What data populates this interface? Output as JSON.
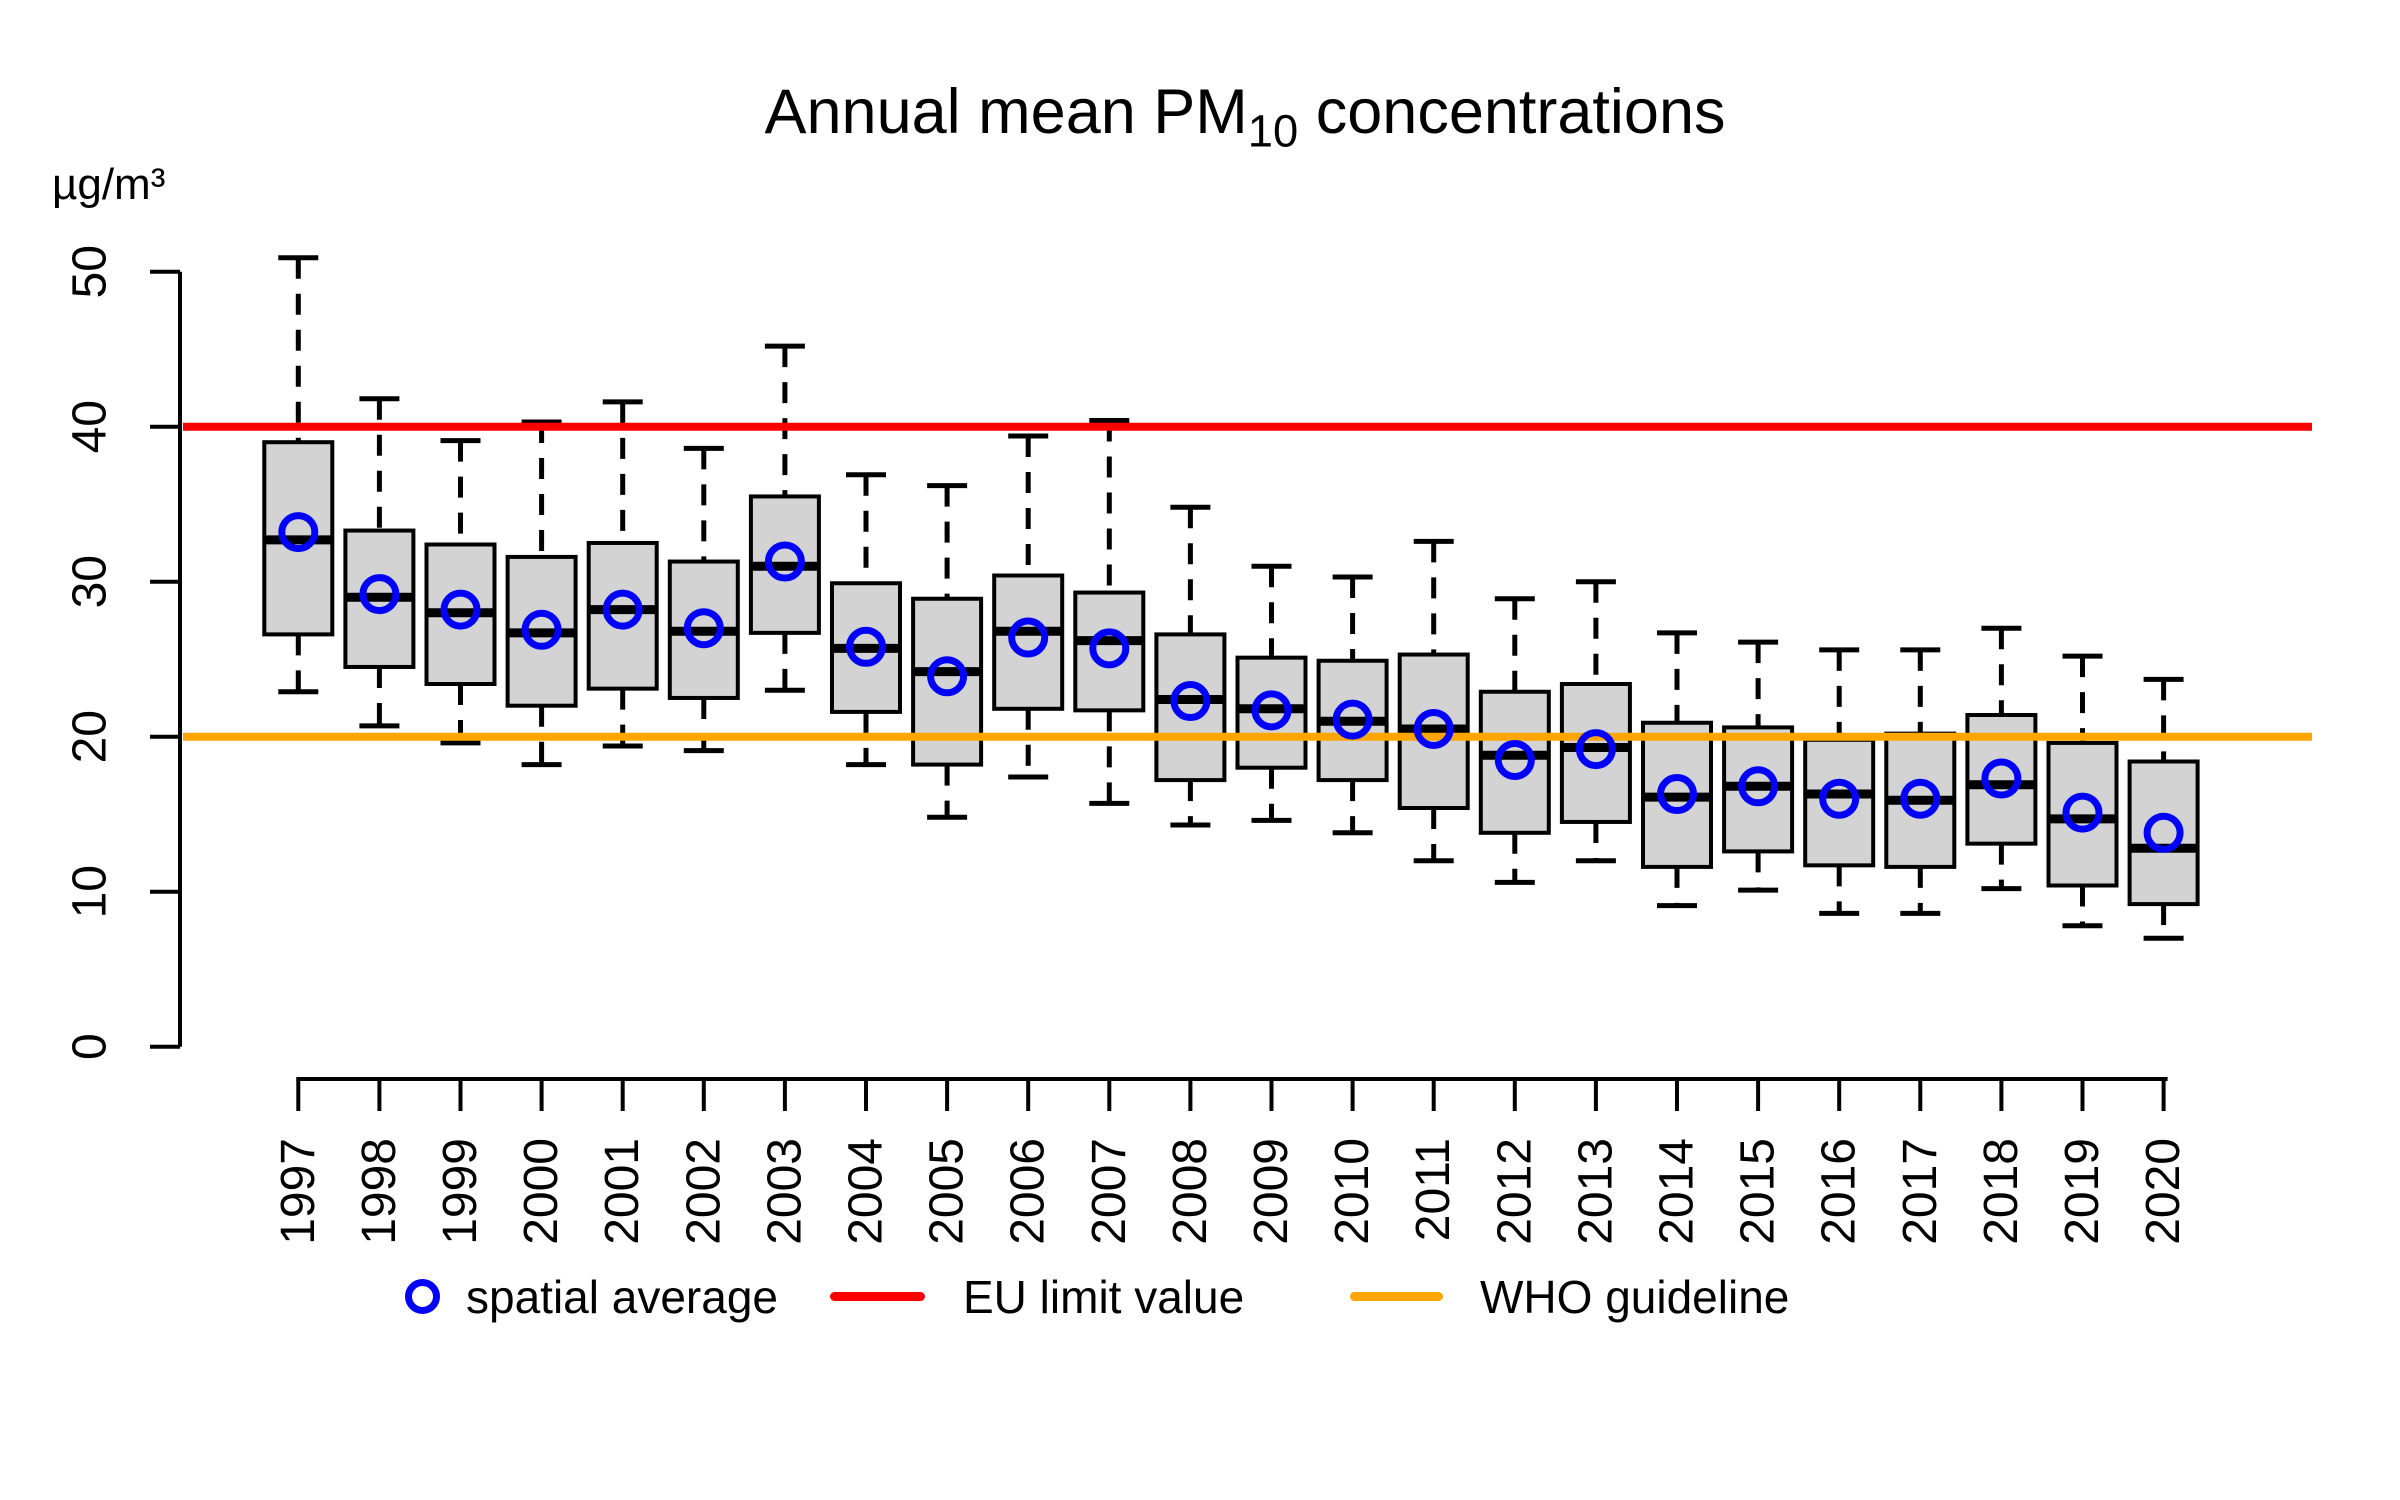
{
  "title": {
    "prefix": "Annual mean PM",
    "subscript": "10",
    "suffix": " concentrations"
  },
  "y_axis": {
    "unit_label": "µg/m³"
  },
  "legend": {
    "spatial_average": "spatial average",
    "eu_limit": "EU limit value",
    "who_guideline": "WHO guideline"
  },
  "colors": {
    "box_fill": "#d3d3d3",
    "box_border": "#000000",
    "median_line": "#000000",
    "mean_marker": "#0000ff",
    "eu_limit_line": "#ff0000",
    "who_guideline_line": "#ffa500"
  },
  "reference_lines": [
    {
      "name": "eu-limit-value",
      "label": "EU limit value",
      "value": 40,
      "color": "#ff0000"
    },
    {
      "name": "who-guideline",
      "label": "WHO guideline",
      "value": 20,
      "color": "#ffa500"
    }
  ],
  "chart_data": {
    "type": "boxplot",
    "title": "Annual mean PM10 concentrations",
    "ylabel": "µg/m³",
    "ylim": [
      0,
      50
    ],
    "y_ticks": [
      0,
      10,
      20,
      30,
      40,
      50
    ],
    "grid": false,
    "legend_position": "bottom",
    "categories": [
      "1997",
      "1998",
      "1999",
      "2000",
      "2001",
      "2002",
      "2003",
      "2004",
      "2005",
      "2006",
      "2007",
      "2008",
      "2009",
      "2010",
      "2011",
      "2012",
      "2013",
      "2014",
      "2015",
      "2016",
      "2017",
      "2018",
      "2019",
      "2020"
    ],
    "boxes": [
      {
        "year": "1997",
        "whisker_low": 22.9,
        "q1": 26.6,
        "median": 32.7,
        "q3": 39.0,
        "whisker_high": 50.9,
        "mean": 33.2
      },
      {
        "year": "1998",
        "whisker_low": 20.7,
        "q1": 24.5,
        "median": 29.0,
        "q3": 33.3,
        "whisker_high": 41.8,
        "mean": 29.2
      },
      {
        "year": "1999",
        "whisker_low": 19.6,
        "q1": 23.4,
        "median": 28.0,
        "q3": 32.4,
        "whisker_high": 39.1,
        "mean": 28.2
      },
      {
        "year": "2000",
        "whisker_low": 18.2,
        "q1": 22.0,
        "median": 26.7,
        "q3": 31.6,
        "whisker_high": 40.3,
        "mean": 26.9
      },
      {
        "year": "2001",
        "whisker_low": 19.4,
        "q1": 23.1,
        "median": 28.2,
        "q3": 32.5,
        "whisker_high": 41.6,
        "mean": 28.2
      },
      {
        "year": "2002",
        "whisker_low": 19.1,
        "q1": 22.5,
        "median": 26.8,
        "q3": 31.3,
        "whisker_high": 38.6,
        "mean": 27.0
      },
      {
        "year": "2003",
        "whisker_low": 23.0,
        "q1": 26.7,
        "median": 31.0,
        "q3": 35.5,
        "whisker_high": 45.2,
        "mean": 31.3
      },
      {
        "year": "2004",
        "whisker_low": 18.2,
        "q1": 21.6,
        "median": 25.7,
        "q3": 29.9,
        "whisker_high": 36.9,
        "mean": 25.8
      },
      {
        "year": "2005",
        "whisker_low": 14.8,
        "q1": 18.2,
        "median": 24.2,
        "q3": 28.9,
        "whisker_high": 36.2,
        "mean": 23.9
      },
      {
        "year": "2006",
        "whisker_low": 17.4,
        "q1": 21.8,
        "median": 26.8,
        "q3": 30.4,
        "whisker_high": 39.4,
        "mean": 26.4
      },
      {
        "year": "2007",
        "whisker_low": 15.7,
        "q1": 21.7,
        "median": 26.2,
        "q3": 29.3,
        "whisker_high": 40.4,
        "mean": 25.7
      },
      {
        "year": "2008",
        "whisker_low": 14.3,
        "q1": 17.2,
        "median": 22.4,
        "q3": 26.6,
        "whisker_high": 34.8,
        "mean": 22.3
      },
      {
        "year": "2009",
        "whisker_low": 14.6,
        "q1": 18.0,
        "median": 21.8,
        "q3": 25.1,
        "whisker_high": 31.0,
        "mean": 21.7
      },
      {
        "year": "2010",
        "whisker_low": 13.8,
        "q1": 17.2,
        "median": 21.0,
        "q3": 24.9,
        "whisker_high": 30.3,
        "mean": 21.1
      },
      {
        "year": "2011",
        "whisker_low": 12.0,
        "q1": 15.4,
        "median": 20.5,
        "q3": 25.3,
        "whisker_high": 32.6,
        "mean": 20.5
      },
      {
        "year": "2012",
        "whisker_low": 10.6,
        "q1": 13.8,
        "median": 18.8,
        "q3": 22.9,
        "whisker_high": 28.9,
        "mean": 18.5
      },
      {
        "year": "2013",
        "whisker_low": 12.0,
        "q1": 14.5,
        "median": 19.3,
        "q3": 23.4,
        "whisker_high": 30.0,
        "mean": 19.2
      },
      {
        "year": "2014",
        "whisker_low": 9.1,
        "q1": 11.6,
        "median": 16.1,
        "q3": 20.9,
        "whisker_high": 26.7,
        "mean": 16.3
      },
      {
        "year": "2015",
        "whisker_low": 10.1,
        "q1": 12.6,
        "median": 16.8,
        "q3": 20.6,
        "whisker_high": 26.1,
        "mean": 16.8
      },
      {
        "year": "2016",
        "whisker_low": 8.6,
        "q1": 11.7,
        "median": 16.3,
        "q3": 19.8,
        "whisker_high": 25.6,
        "mean": 16.0
      },
      {
        "year": "2017",
        "whisker_low": 8.6,
        "q1": 11.6,
        "median": 15.9,
        "q3": 20.2,
        "whisker_high": 25.6,
        "mean": 16.0
      },
      {
        "year": "2018",
        "whisker_low": 10.2,
        "q1": 13.1,
        "median": 16.9,
        "q3": 21.4,
        "whisker_high": 27.0,
        "mean": 17.3
      },
      {
        "year": "2019",
        "whisker_low": 7.8,
        "q1": 10.4,
        "median": 14.7,
        "q3": 19.6,
        "whisker_high": 25.2,
        "mean": 15.1
      },
      {
        "year": "2020",
        "whisker_low": 7.0,
        "q1": 9.2,
        "median": 12.8,
        "q3": 18.4,
        "whisker_high": 23.7,
        "mean": 13.8
      }
    ]
  }
}
